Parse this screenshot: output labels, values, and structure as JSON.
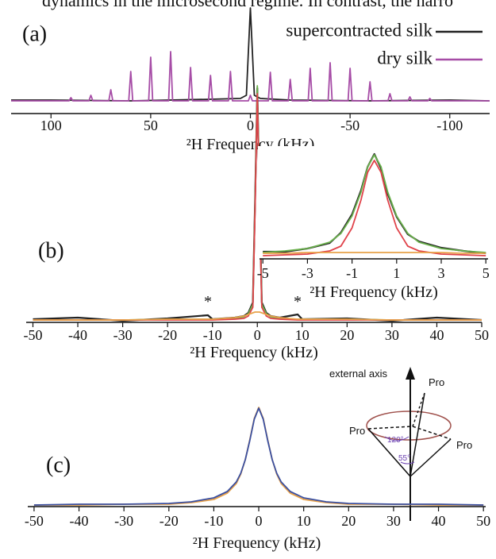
{
  "page_text": "dynamics in the microsecond regime. In contrast, the narro",
  "chart_data": [
    {
      "type": "line",
      "panel_label": "(a)",
      "xlabel": "²H Frequency (kHz)",
      "xlim": [
        120,
        -120
      ],
      "xticks": [
        100,
        50,
        0,
        -50,
        -100
      ],
      "ylim": [
        0,
        120
      ],
      "legend": "top-right",
      "series": [
        {
          "name": "supercontracted silk",
          "color": "#222222",
          "x": [
            120,
            100,
            60,
            20,
            5,
            2,
            0,
            -2,
            -5,
            -20,
            -60,
            -100,
            -120
          ],
          "values": [
            2,
            2,
            1,
            3,
            4,
            8,
            118,
            8,
            4,
            2,
            1,
            2,
            1
          ]
        },
        {
          "name": "dry silk",
          "color": "#a64ca6",
          "x": [
            120,
            91,
            90,
            89,
            81,
            80,
            79,
            71,
            70,
            69,
            61,
            60,
            59,
            51,
            50,
            49,
            41,
            40,
            39,
            31,
            30,
            29,
            21,
            20,
            19,
            11,
            10,
            9,
            1,
            0,
            -1,
            -9,
            -10,
            -11,
            -19,
            -20,
            -21,
            -29,
            -30,
            -31,
            -39,
            -40,
            -41,
            -49,
            -50,
            -51,
            -59,
            -60,
            -61,
            -69,
            -70,
            -71,
            -79,
            -80,
            -81,
            -89,
            -90,
            -91,
            -120
          ],
          "values": [
            1,
            1,
            5,
            1,
            1,
            8,
            1,
            1,
            15,
            1,
            1,
            38,
            1,
            1,
            56,
            1,
            1,
            63,
            1,
            1,
            43,
            1,
            1,
            33,
            1,
            1,
            38,
            1,
            1,
            8,
            1,
            1,
            37,
            1,
            1,
            28,
            1,
            1,
            42,
            1,
            1,
            49,
            1,
            1,
            42,
            1,
            1,
            25,
            1,
            1,
            10,
            1,
            1,
            6,
            1,
            1,
            4,
            1,
            1
          ]
        }
      ]
    },
    {
      "type": "line",
      "panel_label": "(b)",
      "xlabel": "²H Frequency (kHz)",
      "xlim": [
        -51.5,
        50
      ],
      "xticks": [
        -50,
        -40,
        -30,
        -20,
        -10,
        0,
        10,
        20,
        30,
        40,
        50
      ],
      "ylim": [
        0,
        300
      ],
      "annotations": [
        "*",
        "*"
      ],
      "x": [
        -50,
        -40,
        -30,
        -20,
        -11,
        -10,
        -5,
        -3,
        -2,
        -1,
        -0.5,
        0,
        0.5,
        1,
        2,
        3,
        5,
        9,
        10,
        20,
        30,
        40,
        50
      ],
      "series": [
        {
          "color": "#222222",
          "values": [
            1,
            3,
            -1,
            2,
            6,
            1,
            3,
            5,
            9,
            22,
            150,
            292,
            150,
            22,
            9,
            5,
            3,
            7,
            1,
            2,
            -1,
            3,
            0
          ]
        },
        {
          "color": "#6ab04c",
          "values": [
            0,
            0,
            0,
            1,
            1,
            1,
            2,
            4,
            8,
            20,
            148,
            295,
            148,
            20,
            8,
            4,
            2,
            1,
            1,
            1,
            0,
            0,
            0
          ]
        },
        {
          "color": "#e0434a",
          "values": [
            0,
            0,
            0,
            0,
            0,
            0,
            1,
            2,
            5,
            16,
            140,
            285,
            140,
            16,
            5,
            2,
            1,
            0,
            0,
            0,
            0,
            0,
            0
          ]
        },
        {
          "color": "#e8a24a",
          "values": [
            0,
            0,
            0,
            1,
            1,
            1,
            3,
            5,
            7,
            9,
            10,
            10,
            10,
            9,
            7,
            5,
            3,
            1,
            1,
            1,
            0,
            0,
            0
          ]
        }
      ]
    },
    {
      "type": "line",
      "xlabel": "²H Frequency (kHz)",
      "xlim": [
        -5.15,
        5.1
      ],
      "xticks": [
        -5,
        -3,
        -1,
        1,
        3,
        5
      ],
      "ylim": [
        0,
        130
      ],
      "x": [
        -5,
        -4,
        -3,
        -2,
        -1.5,
        -1,
        -0.6,
        -0.3,
        0,
        0.3,
        0.6,
        1,
        1.5,
        2,
        3,
        4,
        5
      ],
      "series": [
        {
          "color": "#222222",
          "values": [
            5,
            5,
            9,
            16,
            29,
            52,
            82,
            112,
            128,
            110,
            78,
            49,
            27,
            18,
            10,
            6,
            3
          ]
        },
        {
          "color": "#6ab04c",
          "values": [
            4,
            6,
            9,
            17,
            28,
            50,
            80,
            112,
            127,
            112,
            80,
            50,
            28,
            17,
            9,
            6,
            4
          ]
        },
        {
          "color": "#e0434a",
          "values": [
            0,
            1,
            2,
            6,
            12,
            35,
            70,
            105,
            120,
            105,
            70,
            35,
            12,
            6,
            2,
            1,
            0
          ]
        },
        {
          "color": "#e8a24a",
          "values": [
            3,
            3,
            4,
            4,
            4,
            4,
            4,
            4,
            4,
            4,
            4,
            4,
            4,
            4,
            4,
            3,
            3
          ]
        }
      ]
    },
    {
      "type": "line",
      "panel_label": "(c)",
      "xlabel": "²H Frequency (kHz)",
      "xlim": [
        -51.4,
        50.5
      ],
      "xticks": [
        -50,
        -40,
        -30,
        -20,
        -10,
        0,
        10,
        20,
        30,
        40,
        50
      ],
      "ylim": [
        0,
        122
      ],
      "diagram_labels": [
        "external axis",
        "Pro",
        "Pro",
        "Pro",
        "120°",
        "55°"
      ],
      "x": [
        -50,
        -40,
        -30,
        -20,
        -15,
        -10,
        -7,
        -5,
        -4,
        -3,
        -2,
        -1,
        0,
        1,
        2,
        3,
        4,
        5,
        7,
        10,
        15,
        20,
        30,
        40,
        50
      ],
      "series": [
        {
          "color": "#e8a24a",
          "values": [
            0,
            0,
            1,
            1,
            3,
            7,
            15,
            27,
            39,
            57,
            82,
            109,
            123,
            109,
            82,
            57,
            39,
            27,
            15,
            7,
            3,
            1,
            1,
            0,
            0
          ]
        },
        {
          "color": "#3a4fa0",
          "values": [
            0,
            1,
            1,
            2,
            4,
            9,
            17,
            29,
            40,
            57,
            81,
            108,
            122,
            108,
            81,
            57,
            40,
            29,
            17,
            9,
            4,
            2,
            1,
            1,
            0
          ]
        }
      ]
    }
  ]
}
